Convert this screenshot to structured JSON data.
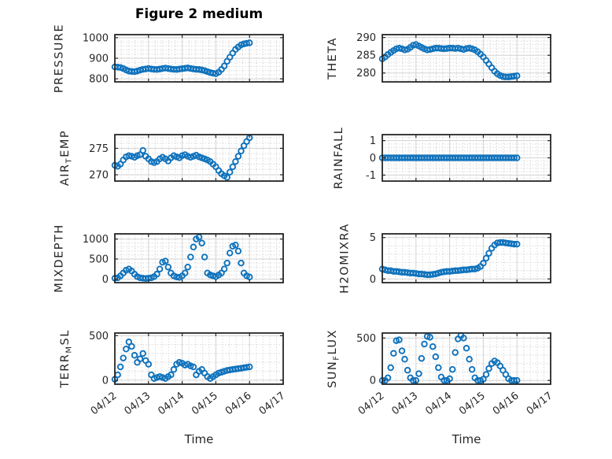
{
  "title": "Figure 2 medium",
  "xlabel": "Time",
  "marker_color": "#0F72BC",
  "axis_color": "#262626",
  "chart_data": {
    "type": "scatter",
    "marker": "open-circle",
    "grid": "major solid + minor dotted",
    "xlim": [
      0,
      120
    ],
    "x_unit": "hours after 04/12 00:00",
    "xticks": {
      "values": [
        0,
        24,
        48,
        72,
        96,
        120
      ],
      "labels": [
        "04/12",
        "04/13",
        "04/14",
        "04/15",
        "04/16",
        "04/17"
      ]
    },
    "x": [
      0,
      2,
      4,
      6,
      8,
      10,
      12,
      14,
      16,
      18,
      20,
      22,
      24,
      26,
      28,
      30,
      32,
      34,
      36,
      38,
      40,
      42,
      44,
      46,
      48,
      50,
      52,
      54,
      56,
      58,
      60,
      62,
      64,
      66,
      68,
      70,
      72,
      74,
      76,
      78,
      80,
      82,
      84,
      86,
      88,
      90,
      92,
      94,
      96
    ],
    "subplots": [
      {
        "name": "pressure",
        "ylabel": "PRESSURE",
        "ylabel_parts": [
          {
            "t": "PRESSURE"
          }
        ],
        "yticks": [
          800,
          900,
          1000
        ],
        "ytick_labels": [
          "800",
          "900",
          "1000"
        ],
        "ylim": [
          785,
          1015
        ],
        "values": [
          858,
          857,
          855,
          850,
          843,
          838,
          836,
          835,
          838,
          842,
          846,
          848,
          850,
          848,
          846,
          845,
          847,
          850,
          852,
          850,
          848,
          846,
          845,
          847,
          849,
          851,
          853,
          850,
          848,
          846,
          845,
          843,
          840,
          835,
          830,
          827,
          825,
          832,
          845,
          862,
          885,
          905,
          925,
          943,
          955,
          965,
          970,
          973,
          975
        ]
      },
      {
        "name": "theta",
        "ylabel": "THETA",
        "ylabel_parts": [
          {
            "t": "THETA"
          }
        ],
        "yticks": [
          280,
          285,
          290
        ],
        "ytick_labels": [
          "280",
          "285",
          "290"
        ],
        "ylim": [
          277.5,
          290.8
        ],
        "values": [
          284.0,
          284.5,
          285.2,
          285.8,
          286.3,
          286.8,
          287.0,
          286.8,
          286.5,
          286.7,
          287.2,
          287.8,
          288.0,
          287.6,
          287.2,
          286.8,
          286.5,
          286.6,
          286.8,
          287.0,
          287.0,
          286.9,
          286.8,
          286.9,
          287.0,
          287.0,
          286.9,
          287.0,
          286.8,
          286.6,
          286.9,
          287.0,
          286.8,
          286.5,
          286.0,
          285.3,
          284.5,
          283.5,
          282.5,
          281.5,
          280.5,
          279.8,
          279.3,
          279.0,
          278.9,
          278.9,
          279.0,
          279.1,
          279.2
        ]
      },
      {
        "name": "air-temp",
        "ylabel": "AIR_TEMP",
        "ylabel_parts": [
          {
            "t": "AIR"
          },
          {
            "t": "T",
            "sub": true
          },
          {
            "t": "EMP"
          }
        ],
        "yticks": [
          270,
          275
        ],
        "ytick_labels": [
          "270",
          "275"
        ],
        "ylim": [
          268.8,
          277.6
        ],
        "values": [
          271.8,
          271.6,
          272.0,
          272.8,
          273.4,
          273.6,
          273.5,
          273.3,
          273.6,
          273.8,
          274.6,
          273.5,
          273.0,
          272.5,
          272.3,
          272.5,
          273.0,
          273.3,
          273.0,
          272.6,
          273.2,
          273.6,
          273.4,
          273.2,
          273.6,
          273.8,
          273.5,
          273.3,
          273.5,
          273.7,
          273.4,
          273.2,
          273.0,
          272.8,
          272.5,
          272.0,
          271.5,
          270.8,
          270.2,
          269.8,
          269.5,
          270.5,
          271.5,
          272.5,
          273.5,
          274.5,
          275.5,
          276.3,
          277.0
        ]
      },
      {
        "name": "rainfall",
        "ylabel": "RAINFALL",
        "ylabel_parts": [
          {
            "t": "RAINFALL"
          }
        ],
        "yticks": [
          -1,
          0,
          1
        ],
        "ytick_labels": [
          "-1",
          "0",
          "1"
        ],
        "ylim": [
          -1.35,
          1.35
        ],
        "values": [
          0,
          0,
          0,
          0,
          0,
          0,
          0,
          0,
          0,
          0,
          0,
          0,
          0,
          0,
          0,
          0,
          0,
          0,
          0,
          0,
          0,
          0,
          0,
          0,
          0,
          0,
          0,
          0,
          0,
          0,
          0,
          0,
          0,
          0,
          0,
          0,
          0,
          0,
          0,
          0,
          0,
          0,
          0,
          0,
          0,
          0,
          0,
          0,
          0
        ]
      },
      {
        "name": "mixdepth",
        "ylabel": "MIXDEPTH",
        "ylabel_parts": [
          {
            "t": "MIXDEPTH"
          }
        ],
        "yticks": [
          0,
          500,
          1000
        ],
        "ytick_labels": [
          "0",
          "500",
          "1000"
        ],
        "ylim": [
          -90,
          1130
        ],
        "values": [
          20,
          30,
          80,
          150,
          220,
          250,
          200,
          120,
          60,
          30,
          20,
          15,
          20,
          30,
          60,
          120,
          250,
          420,
          450,
          300,
          150,
          80,
          50,
          40,
          80,
          150,
          300,
          550,
          800,
          1000,
          1050,
          900,
          550,
          150,
          100,
          80,
          60,
          100,
          150,
          250,
          400,
          650,
          820,
          850,
          700,
          400,
          150,
          80,
          50
        ]
      },
      {
        "name": "h2omixra",
        "ylabel": "H2OMIXRA",
        "ylabel_parts": [
          {
            "t": "H2OMIXRA"
          }
        ],
        "yticks": [
          0,
          5
        ],
        "ytick_labels": [
          "0",
          "5"
        ],
        "ylim": [
          -0.45,
          5.45
        ],
        "values": [
          1.2,
          1.1,
          1.0,
          1.0,
          0.9,
          0.9,
          0.85,
          0.8,
          0.8,
          0.75,
          0.7,
          0.7,
          0.65,
          0.6,
          0.6,
          0.55,
          0.5,
          0.5,
          0.55,
          0.6,
          0.7,
          0.8,
          0.85,
          0.9,
          0.9,
          0.95,
          1.0,
          1.0,
          1.05,
          1.1,
          1.1,
          1.15,
          1.2,
          1.2,
          1.3,
          1.5,
          1.9,
          2.5,
          3.1,
          3.7,
          4.1,
          4.35,
          4.4,
          4.4,
          4.35,
          4.3,
          4.25,
          4.2,
          4.2
        ]
      },
      {
        "name": "terr-msl",
        "ylabel": "TERR_MSL",
        "ylabel_parts": [
          {
            "t": "TERR"
          },
          {
            "t": "M",
            "sub": true
          },
          {
            "t": "SL"
          }
        ],
        "yticks": [
          0,
          500
        ],
        "ytick_labels": [
          "0",
          "500"
        ],
        "ylim": [
          -45,
          530
        ],
        "values": [
          10,
          60,
          150,
          250,
          350,
          430,
          380,
          280,
          200,
          240,
          300,
          220,
          180,
          60,
          20,
          30,
          40,
          30,
          20,
          40,
          60,
          120,
          180,
          200,
          190,
          170,
          180,
          160,
          150,
          60,
          100,
          120,
          80,
          40,
          20,
          40,
          60,
          80,
          90,
          100,
          110,
          115,
          120,
          125,
          130,
          135,
          140,
          145,
          150
        ]
      },
      {
        "name": "sun-flux",
        "ylabel": "SUN_FLUX",
        "ylabel_parts": [
          {
            "t": "SUN"
          },
          {
            "t": "F",
            "sub": true
          },
          {
            "t": "LUX"
          }
        ],
        "yticks": [
          0,
          500
        ],
        "ytick_labels": [
          "0",
          "500"
        ],
        "ylim": [
          -45,
          560
        ],
        "values": [
          0,
          0,
          30,
          150,
          320,
          470,
          480,
          350,
          250,
          120,
          30,
          0,
          0,
          80,
          260,
          430,
          520,
          510,
          400,
          280,
          150,
          40,
          0,
          0,
          20,
          130,
          330,
          490,
          530,
          500,
          380,
          250,
          130,
          30,
          0,
          0,
          15,
          70,
          140,
          200,
          230,
          210,
          170,
          120,
          70,
          20,
          0,
          0,
          0
        ]
      }
    ]
  }
}
